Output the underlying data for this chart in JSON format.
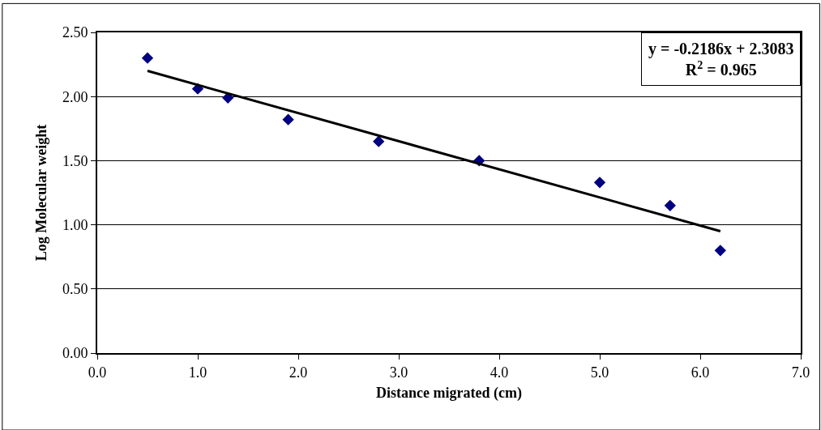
{
  "chart_data": {
    "type": "scatter",
    "xlabel": "Distance migrated (cm)",
    "ylabel": "Log Molecular weight",
    "annotations": [
      "y = -0.2186x + 2.3083\nR$^{2}$ = 0.965"
    ],
    "series": [
      {
        "type": "scatter",
        "color": "#000080",
        "marker": "diamond",
        "x": [
          0.5,
          1.0,
          1.3,
          1.9,
          2.8,
          3.8,
          5.0,
          5.7,
          6.2
        ],
        "values": [
          2.3,
          2.06,
          1.99,
          1.82,
          1.65,
          1.5,
          1.33,
          1.15,
          0.8
        ]
      },
      {
        "type": "line",
        "color": "#000000",
        "marker": "none",
        "line_style": "solid",
        "x": [
          0.5,
          6.2
        ],
        "values": [
          2.2,
          0.95
        ]
      }
    ],
    "xlim": [
      0,
      7
    ],
    "xticks": [
      {
        "value": 0,
        "label": "0.0"
      },
      {
        "value": 1,
        "label": "1.0"
      },
      {
        "value": 2,
        "label": "2.0"
      },
      {
        "value": 3,
        "label": "3.0"
      },
      {
        "value": 4,
        "label": "4.0"
      },
      {
        "value": 5,
        "label": "5.0"
      },
      {
        "value": 6,
        "label": "6.0"
      },
      {
        "value": 7,
        "label": "7.0"
      }
    ],
    "ylim": [
      0,
      2.5
    ],
    "yticks": [
      {
        "value": 0,
        "label": "0.00"
      },
      {
        "value": 0.5,
        "label": "0.50"
      },
      {
        "value": 1,
        "label": "1.00"
      },
      {
        "value": 1.5,
        "label": "1.50"
      },
      {
        "value": 2,
        "label": "2.00"
      },
      {
        "value": 2.5,
        "label": "2.50"
      }
    ],
    "grid": "y"
  }
}
